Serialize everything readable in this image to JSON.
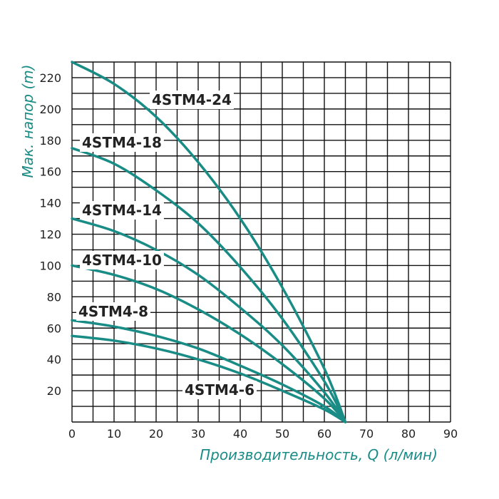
{
  "chart_data": {
    "type": "line",
    "xlabel": "Производительность, Q (л/мин)",
    "ylabel": "Мак. напор (m)",
    "xlim": [
      0,
      90
    ],
    "ylim": [
      0,
      230
    ],
    "x_ticks": [
      "0",
      "10",
      "20",
      "30",
      "40",
      "50",
      "60",
      "70",
      "80",
      "90"
    ],
    "y_ticks": [
      "20",
      "40",
      "60",
      "80",
      "100",
      "120",
      "140",
      "160",
      "180",
      "200",
      "220"
    ],
    "grid": true,
    "series_color": "#1a8c86",
    "grid_color": "#111111",
    "axis_title_color": "#1a8c86",
    "series": [
      {
        "name": "4STM4-24",
        "x": [
          0,
          10,
          20,
          30,
          40,
          50,
          60,
          65
        ],
        "y": [
          230,
          216,
          195,
          166,
          130,
          86,
          34,
          0
        ]
      },
      {
        "name": "4STM4-18",
        "x": [
          0,
          10,
          20,
          30,
          40,
          50,
          60,
          65
        ],
        "y": [
          175,
          165,
          148,
          127,
          99,
          66,
          26,
          0
        ]
      },
      {
        "name": "4STM4-14",
        "x": [
          0,
          10,
          20,
          30,
          40,
          50,
          60,
          65
        ],
        "y": [
          130,
          122,
          110,
          94,
          73,
          49,
          19,
          0
        ]
      },
      {
        "name": "4STM4-10",
        "x": [
          0,
          10,
          20,
          30,
          40,
          50,
          60,
          65
        ],
        "y": [
          100,
          94,
          85,
          72,
          56,
          37,
          15,
          0
        ]
      },
      {
        "name": "4STM4-8",
        "x": [
          0,
          10,
          20,
          30,
          40,
          50,
          60,
          65
        ],
        "y": [
          65,
          61,
          55,
          47,
          36,
          24,
          10,
          0
        ]
      },
      {
        "name": "4STM4-6",
        "x": [
          0,
          10,
          20,
          30,
          40,
          50,
          60,
          65
        ],
        "y": [
          55,
          52,
          47,
          40,
          31,
          20,
          8,
          0
        ]
      }
    ]
  }
}
